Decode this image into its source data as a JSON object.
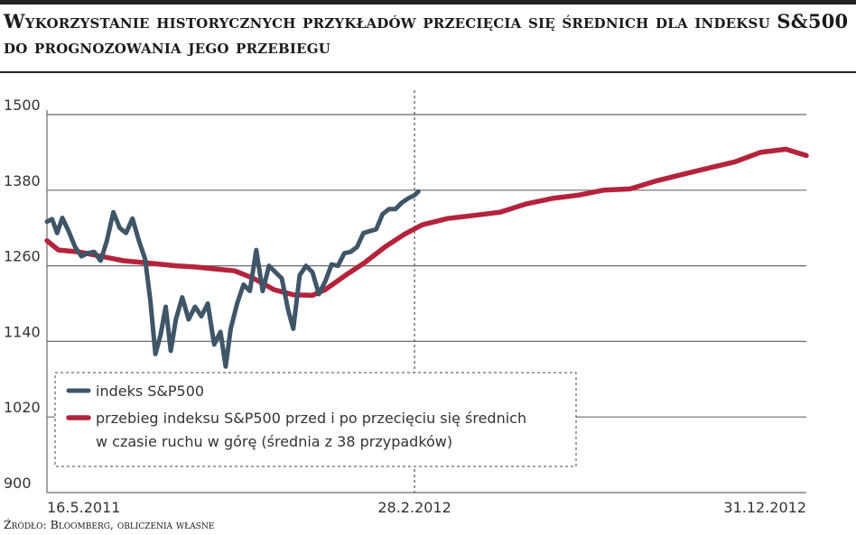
{
  "chart_data": {
    "type": "line",
    "title": "Wykorzystanie historycznych przykładów przecięcia się średnich dla indeksu S&500 do prognozowania jego przebiegu",
    "source": "Źródło: Bloomberg, obliczenia własne",
    "ylim": [
      900,
      1500
    ],
    "yticks": [
      900,
      1020,
      1140,
      1260,
      1380,
      1500
    ],
    "xlim": [
      "2011-05-16",
      "2012-12-31"
    ],
    "xticks": [
      {
        "date": "2011-05-16",
        "label": "16.5.2011"
      },
      {
        "date": "2012-02-28",
        "label": "28.2.2012"
      },
      {
        "date": "2012-12-31",
        "label": "31.12.2012"
      }
    ],
    "marker_date": "2012-02-28",
    "grid": true,
    "legend_position": "bottom-left",
    "colors": {
      "sp500": "#3f5568",
      "forecast": "#b4233c"
    },
    "series": [
      {
        "name": "indeks S&P500",
        "points": [
          [
            "2011-05-16",
            1330
          ],
          [
            "2011-05-20",
            1334
          ],
          [
            "2011-05-24",
            1312
          ],
          [
            "2011-05-28",
            1336
          ],
          [
            "2011-06-02",
            1315
          ],
          [
            "2011-06-07",
            1290
          ],
          [
            "2011-06-12",
            1275
          ],
          [
            "2011-06-17",
            1280
          ],
          [
            "2011-06-22",
            1282
          ],
          [
            "2011-06-27",
            1268
          ],
          [
            "2011-07-02",
            1300
          ],
          [
            "2011-07-07",
            1345
          ],
          [
            "2011-07-12",
            1320
          ],
          [
            "2011-07-17",
            1312
          ],
          [
            "2011-07-22",
            1335
          ],
          [
            "2011-07-27",
            1300
          ],
          [
            "2011-08-01",
            1270
          ],
          [
            "2011-08-05",
            1205
          ],
          [
            "2011-08-09",
            1120
          ],
          [
            "2011-08-13",
            1150
          ],
          [
            "2011-08-17",
            1195
          ],
          [
            "2011-08-21",
            1125
          ],
          [
            "2011-08-25",
            1175
          ],
          [
            "2011-08-30",
            1210
          ],
          [
            "2011-09-04",
            1175
          ],
          [
            "2011-09-09",
            1195
          ],
          [
            "2011-09-14",
            1180
          ],
          [
            "2011-09-19",
            1200
          ],
          [
            "2011-09-24",
            1135
          ],
          [
            "2011-09-29",
            1155
          ],
          [
            "2011-10-03",
            1100
          ],
          [
            "2011-10-07",
            1160
          ],
          [
            "2011-10-12",
            1200
          ],
          [
            "2011-10-17",
            1230
          ],
          [
            "2011-10-22",
            1220
          ],
          [
            "2011-10-27",
            1285
          ],
          [
            "2011-11-01",
            1220
          ],
          [
            "2011-11-06",
            1260
          ],
          [
            "2011-11-11",
            1250
          ],
          [
            "2011-11-16",
            1240
          ],
          [
            "2011-11-21",
            1190
          ],
          [
            "2011-11-25",
            1160
          ],
          [
            "2011-11-30",
            1245
          ],
          [
            "2011-12-05",
            1260
          ],
          [
            "2011-12-10",
            1250
          ],
          [
            "2011-12-15",
            1215
          ],
          [
            "2011-12-20",
            1235
          ],
          [
            "2011-12-25",
            1262
          ],
          [
            "2011-12-30",
            1260
          ],
          [
            "2012-01-04",
            1280
          ],
          [
            "2012-01-09",
            1282
          ],
          [
            "2012-01-14",
            1290
          ],
          [
            "2012-01-19",
            1312
          ],
          [
            "2012-01-24",
            1315
          ],
          [
            "2012-01-29",
            1318
          ],
          [
            "2012-02-03",
            1342
          ],
          [
            "2012-02-08",
            1350
          ],
          [
            "2012-02-13",
            1350
          ],
          [
            "2012-02-18",
            1360
          ],
          [
            "2012-02-23",
            1367
          ],
          [
            "2012-02-28",
            1372
          ],
          [
            "2012-03-02",
            1378
          ]
        ]
      },
      {
        "name": "przebieg indeksu S&P500 przed i po przecięciu się średnich w czasie ruchu w górę (średnia z 38 przypadków)",
        "points": [
          [
            "2011-05-16",
            1300
          ],
          [
            "2011-05-25",
            1285
          ],
          [
            "2011-06-10",
            1282
          ],
          [
            "2011-06-25",
            1276
          ],
          [
            "2011-07-15",
            1268
          ],
          [
            "2011-08-05",
            1264
          ],
          [
            "2011-08-25",
            1260
          ],
          [
            "2011-09-10",
            1258
          ],
          [
            "2011-09-25",
            1255
          ],
          [
            "2011-10-10",
            1252
          ],
          [
            "2011-10-25",
            1240
          ],
          [
            "2011-11-10",
            1222
          ],
          [
            "2011-11-25",
            1214
          ],
          [
            "2011-12-10",
            1213
          ],
          [
            "2011-12-20",
            1222
          ],
          [
            "2012-01-05",
            1245
          ],
          [
            "2012-01-20",
            1265
          ],
          [
            "2012-02-05",
            1290
          ],
          [
            "2012-02-20",
            1310
          ],
          [
            "2012-03-05",
            1325
          ],
          [
            "2012-03-25",
            1335
          ],
          [
            "2012-04-15",
            1340
          ],
          [
            "2012-05-05",
            1345
          ],
          [
            "2012-05-25",
            1358
          ],
          [
            "2012-06-15",
            1367
          ],
          [
            "2012-07-05",
            1372
          ],
          [
            "2012-07-25",
            1380
          ],
          [
            "2012-08-15",
            1382
          ],
          [
            "2012-09-05",
            1395
          ],
          [
            "2012-09-25",
            1405
          ],
          [
            "2012-10-15",
            1415
          ],
          [
            "2012-11-05",
            1425
          ],
          [
            "2012-11-25",
            1440
          ],
          [
            "2012-12-15",
            1445
          ],
          [
            "2012-12-31",
            1435
          ]
        ]
      }
    ]
  }
}
